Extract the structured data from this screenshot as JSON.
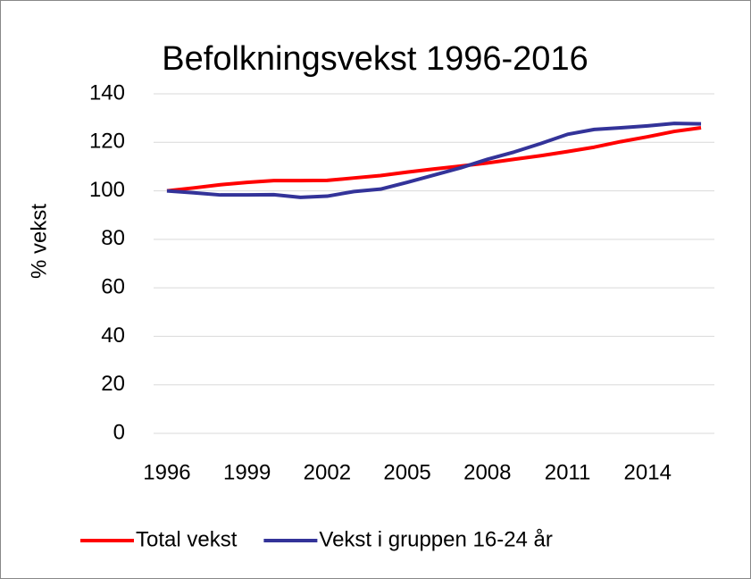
{
  "chart_data": {
    "type": "line",
    "title": "Befolkningsvekst 1996-2016",
    "y_label": "% vekst",
    "categories": [
      "1996",
      null,
      null,
      "1999",
      null,
      null,
      "2002",
      null,
      null,
      "2005",
      null,
      null,
      "2008",
      null,
      null,
      "2011",
      null,
      null,
      "2014",
      null,
      null
    ],
    "series": [
      {
        "name": "Total vekst",
        "color": "#ff0000",
        "values": [
          100,
          101.2,
          102.5,
          103.5,
          104.2,
          104.2,
          104.3,
          105.3,
          106.3,
          107.7,
          109,
          110.2,
          111.5,
          113,
          114.5,
          116.2,
          118,
          120.3,
          122.3,
          124.5,
          126
        ]
      },
      {
        "name": "Vekst i gruppen 16-24 år",
        "color": "#333399",
        "values": [
          100,
          99.2,
          98.3,
          98.3,
          98.4,
          97.3,
          97.8,
          99.7,
          100.7,
          103.5,
          106.5,
          109.5,
          113,
          116,
          119.5,
          123.3,
          125.3,
          126,
          126.8,
          127.8,
          127.6
        ]
      }
    ],
    "ylim": [
      0,
      140
    ],
    "yticks": [
      0,
      20,
      40,
      60,
      80,
      100,
      120,
      140
    ],
    "grid": true,
    "legend": "bottom"
  }
}
